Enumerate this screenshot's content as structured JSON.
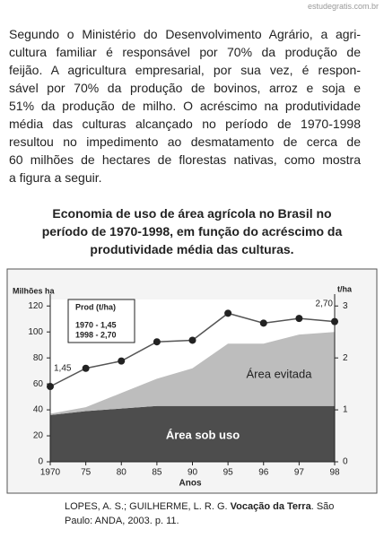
{
  "watermark": "estudegratis.com.br",
  "paragraph": [
    "Segundo o Ministério do Desenvolvimento Agrário, a agri-",
    "cultura familiar é responsável por 70% da produção de",
    "feijão. A agricultura empresarial, por sua vez, é respon-",
    "sável por 70% da produção de bovinos, arroz e soja e",
    "51% da produção de milho. O acréscimo na produtividade",
    "média das culturas alcançado no período de 1970-1998",
    "resultou no impedimento ao desmatamento de cerca de",
    "60 milhões de hectares de florestas nativas, como mostra",
    "a figura a seguir."
  ],
  "chart_data": {
    "type": "stacked-area-line",
    "title": [
      "Economia de uso de área agrícola no Brasil no",
      "período de 1970-1998, em função do acréscimo da",
      "produtividade média das culturas."
    ],
    "y_label": "Milhões ha",
    "y2_label": "t/ha",
    "x_label": "Anos",
    "categories": [
      "1970",
      "75",
      "80",
      "85",
      "90",
      "95",
      "96",
      "97",
      "98"
    ],
    "ylim": [
      0,
      125
    ],
    "yticks": [
      0,
      20,
      40,
      60,
      80,
      100,
      120
    ],
    "y2lim": [
      0,
      3.125
    ],
    "y2ticks": [
      0,
      1,
      2,
      3
    ],
    "series": [
      {
        "name": "Área sob uso",
        "color": "#4d4d4d",
        "values": [
          36,
          39,
          41,
          43,
          43,
          43,
          43,
          43,
          43
        ]
      },
      {
        "name": "Área evitada",
        "color": "#bdbdbd",
        "values": [
          1,
          3,
          12,
          21,
          29,
          48,
          48,
          55,
          57
        ]
      },
      {
        "name": "Prod (t/ha)",
        "color": "#555555",
        "axis": "y2",
        "values": [
          1.45,
          1.8,
          1.94,
          2.31,
          2.34,
          2.86,
          2.67,
          2.76,
          2.7
        ],
        "value_labels": [
          "1,45",
          null,
          null,
          null,
          null,
          null,
          null,
          null,
          "2,70"
        ]
      }
    ],
    "legend_lines": [
      "1970 - 1,45",
      "1998 - 2,70"
    ]
  },
  "source": [
    "LOPES, A. S.; GUILHERME, L. R. G. ",
    "Vocação da Terra",
    ". São Paulo: ANDA, 2003. p. 11."
  ]
}
